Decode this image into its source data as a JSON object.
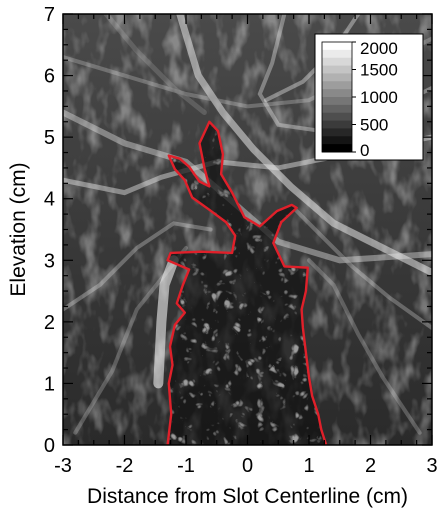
{
  "chart_data": {
    "type": "heatmap",
    "xlabel": "Distance from Slot Centerline (cm)",
    "ylabel": "Elevation (cm)",
    "xlim": [
      -3,
      3
    ],
    "ylim": [
      0,
      7
    ],
    "x_ticks": [
      "-3",
      "-2",
      "-1",
      "0",
      "1",
      "2",
      "3"
    ],
    "y_ticks": [
      "0",
      "1",
      "2",
      "3",
      "4",
      "5",
      "6",
      "7"
    ],
    "colorbar": {
      "labels": [
        "2000",
        "1500",
        "1000",
        "500",
        "0"
      ],
      "min": 0,
      "max": 2000,
      "colormap": "grayscale",
      "placement": "top-right"
    },
    "interface_contour": {
      "color": "#e0202a",
      "points": [
        [
          -1.3,
          0.0
        ],
        [
          -1.24,
          0.5
        ],
        [
          -1.28,
          1.0
        ],
        [
          -1.22,
          1.3
        ],
        [
          -1.26,
          1.6
        ],
        [
          -1.18,
          1.95
        ],
        [
          -1.02,
          2.15
        ],
        [
          -1.15,
          2.3
        ],
        [
          -1.05,
          2.6
        ],
        [
          -0.95,
          2.85
        ],
        [
          -1.3,
          3.0
        ],
        [
          -1.25,
          3.12
        ],
        [
          -0.75,
          3.14
        ],
        [
          -0.25,
          3.12
        ],
        [
          -0.2,
          3.4
        ],
        [
          -0.35,
          3.62
        ],
        [
          -0.62,
          3.82
        ],
        [
          -0.9,
          4.02
        ],
        [
          -1.02,
          4.3
        ],
        [
          -1.18,
          4.48
        ],
        [
          -1.28,
          4.7
        ],
        [
          -1.1,
          4.65
        ],
        [
          -0.95,
          4.52
        ],
        [
          -0.78,
          4.28
        ],
        [
          -0.62,
          4.2
        ],
        [
          -0.7,
          4.5
        ],
        [
          -0.78,
          4.9
        ],
        [
          -0.62,
          5.25
        ],
        [
          -0.48,
          5.1
        ],
        [
          -0.4,
          4.72
        ],
        [
          -0.43,
          4.4
        ],
        [
          -0.25,
          4.1
        ],
        [
          -0.05,
          3.7
        ],
        [
          0.2,
          3.55
        ],
        [
          0.48,
          3.8
        ],
        [
          0.72,
          3.9
        ],
        [
          0.8,
          3.85
        ],
        [
          0.55,
          3.62
        ],
        [
          0.42,
          3.28
        ],
        [
          0.6,
          2.9
        ],
        [
          0.98,
          2.88
        ],
        [
          0.95,
          2.5
        ],
        [
          0.88,
          2.2
        ],
        [
          0.9,
          1.9
        ],
        [
          0.95,
          1.5
        ],
        [
          1.0,
          1.1
        ],
        [
          1.05,
          0.8
        ],
        [
          1.15,
          0.5
        ],
        [
          1.2,
          0.25
        ],
        [
          1.28,
          0.0
        ]
      ]
    }
  }
}
